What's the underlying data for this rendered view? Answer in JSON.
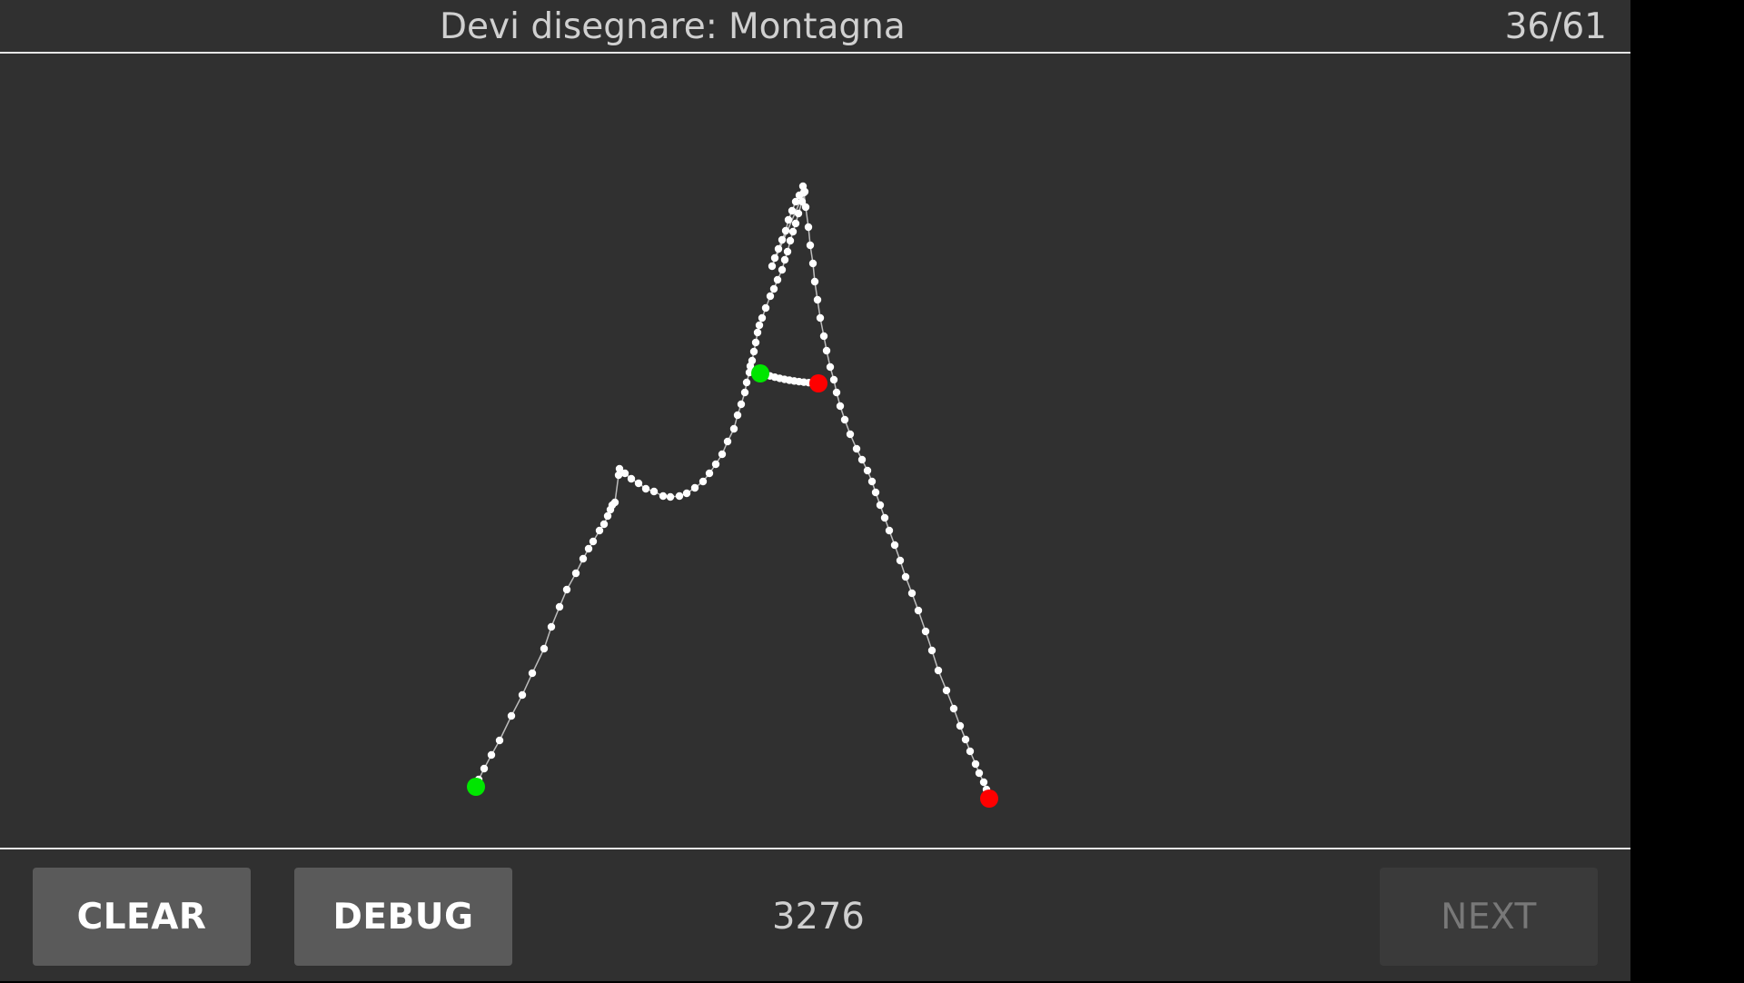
{
  "header": {
    "prompt_label": "Devi disegnare:",
    "prompt_word": "Montagna",
    "counter": "36/61"
  },
  "footer": {
    "clear_label": "CLEAR",
    "debug_label": "DEBUG",
    "score": "3276",
    "next_label": "NEXT"
  },
  "colors": {
    "background": "#303030",
    "stroke_points": "#ffffff",
    "stroke_start": "#00e600",
    "stroke_end": "#ff0000",
    "button": "#5a5a5a",
    "button_disabled": "#3a3a3a"
  }
}
